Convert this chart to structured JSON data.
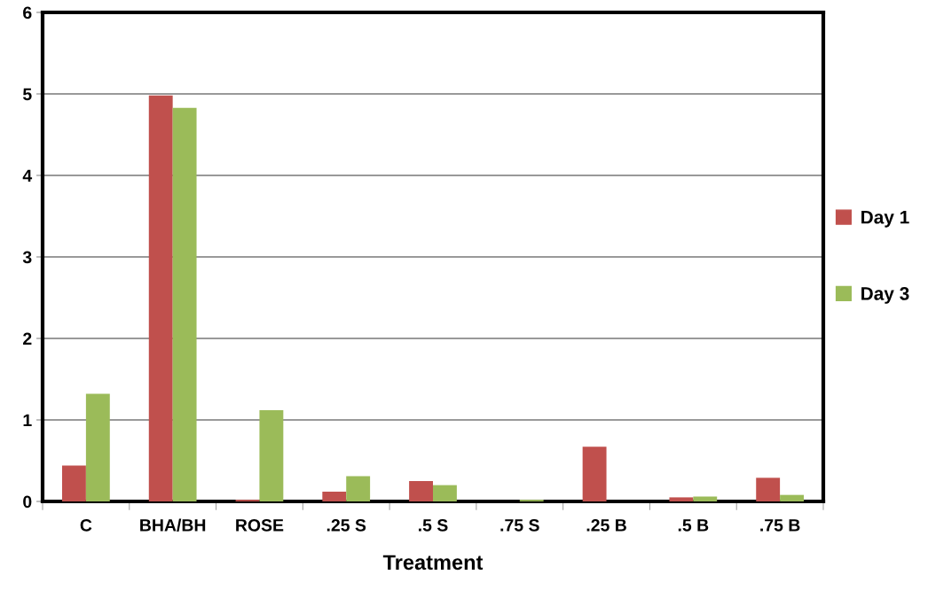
{
  "chart_data": {
    "type": "bar",
    "xlabel": "Treatment",
    "categories": [
      "C",
      "BHA/BH",
      "ROSE",
      ".25 S",
      ".5 S",
      ".75 S",
      ".25 B",
      ".5 B",
      ".75 B"
    ],
    "series": [
      {
        "name": "Day 1",
        "color": "#c0504d",
        "values": [
          0.44,
          4.98,
          0.02,
          0.12,
          0.25,
          0,
          0.67,
          0.05,
          0.29
        ]
      },
      {
        "name": "Day 3",
        "color": "#9bbb59",
        "values": [
          1.32,
          4.83,
          1.12,
          0.31,
          0.2,
          0.02,
          0,
          0.06,
          0.08
        ]
      }
    ],
    "ylim": [
      0,
      6
    ],
    "yticks": [
      0,
      1,
      2,
      3,
      4,
      5,
      6
    ],
    "grid": "y",
    "legend": "right"
  }
}
